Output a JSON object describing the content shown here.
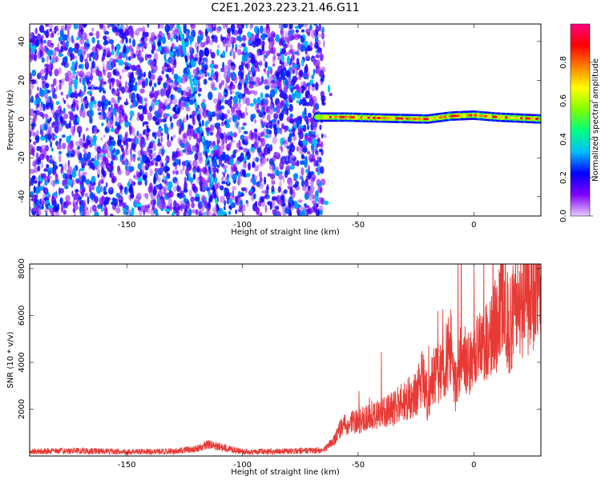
{
  "title": "C2E1.2023.223.21.46.G11",
  "chart_data": [
    {
      "type": "heatmap",
      "xlabel": "Height of straight line (km)",
      "ylabel": "Frequency (Hz)",
      "xlim": [
        -192,
        29
      ],
      "ylim": [
        -50,
        49
      ],
      "xticks": [
        -150,
        -100,
        -50,
        0
      ],
      "yticks": [
        -40,
        -20,
        0,
        20,
        40
      ],
      "features": {
        "noise_region_x": [
          -192,
          -65
        ],
        "noise_amplitude_range": [
          0.05,
          0.35
        ],
        "line_feature": {
          "from": [
            -127,
            46
          ],
          "to": [
            -110,
            -50
          ],
          "amplitude": 0.3
        },
        "carrier": {
          "x_start": -68,
          "x_end": 29,
          "y": 0,
          "y_points": [
            [
              -68,
              1
            ],
            [
              -55,
              1
            ],
            [
              -40,
              0.5
            ],
            [
              -20,
              0
            ],
            [
              -10,
              1.5
            ],
            [
              0,
              2
            ],
            [
              10,
              1
            ],
            [
              29,
              0
            ]
          ],
          "amplitude_range": [
            0.6,
            0.95
          ]
        }
      },
      "colorbar": {
        "label": "Normalized spectral amplitude",
        "ticks": [
          "0.0",
          "0.2",
          "0.4",
          "0.6",
          "0.8"
        ],
        "colors": [
          "#e6ccff",
          "#8000ff",
          "#0000ff",
          "#00bfff",
          "#00ff80",
          "#80ff00",
          "#ffff00",
          "#ff8000",
          "#ff0000",
          "#ff0080"
        ]
      }
    },
    {
      "type": "line",
      "xlabel": "Height of straight line (km)",
      "ylabel": "SNR (10 * v/v)",
      "xlim": [
        -192,
        29
      ],
      "ylim": [
        0,
        8200
      ],
      "xticks": [
        -150,
        -100,
        -50,
        0
      ],
      "yticks": [
        2000,
        4000,
        6000,
        8000
      ],
      "color": "#e83a35",
      "series": [
        {
          "x": [
            -192,
            -170,
            -150,
            -130,
            -120,
            -115,
            -100,
            -80,
            -65,
            -60,
            -58,
            -55,
            -50,
            -45,
            -40,
            -35,
            -30,
            -25,
            -22,
            -20,
            -18,
            -15,
            -10,
            -8,
            -5,
            -2,
            0,
            5,
            10,
            12,
            15,
            20,
            25,
            29
          ],
          "y": [
            200,
            220,
            180,
            200,
            300,
            500,
            180,
            200,
            250,
            700,
            1100,
            1400,
            1500,
            1700,
            1800,
            2000,
            2400,
            2600,
            3500,
            2400,
            3300,
            3600,
            4600,
            3000,
            4500,
            3800,
            4200,
            4900,
            5600,
            7200,
            5500,
            6600,
            6800,
            7000
          ]
        }
      ]
    }
  ]
}
